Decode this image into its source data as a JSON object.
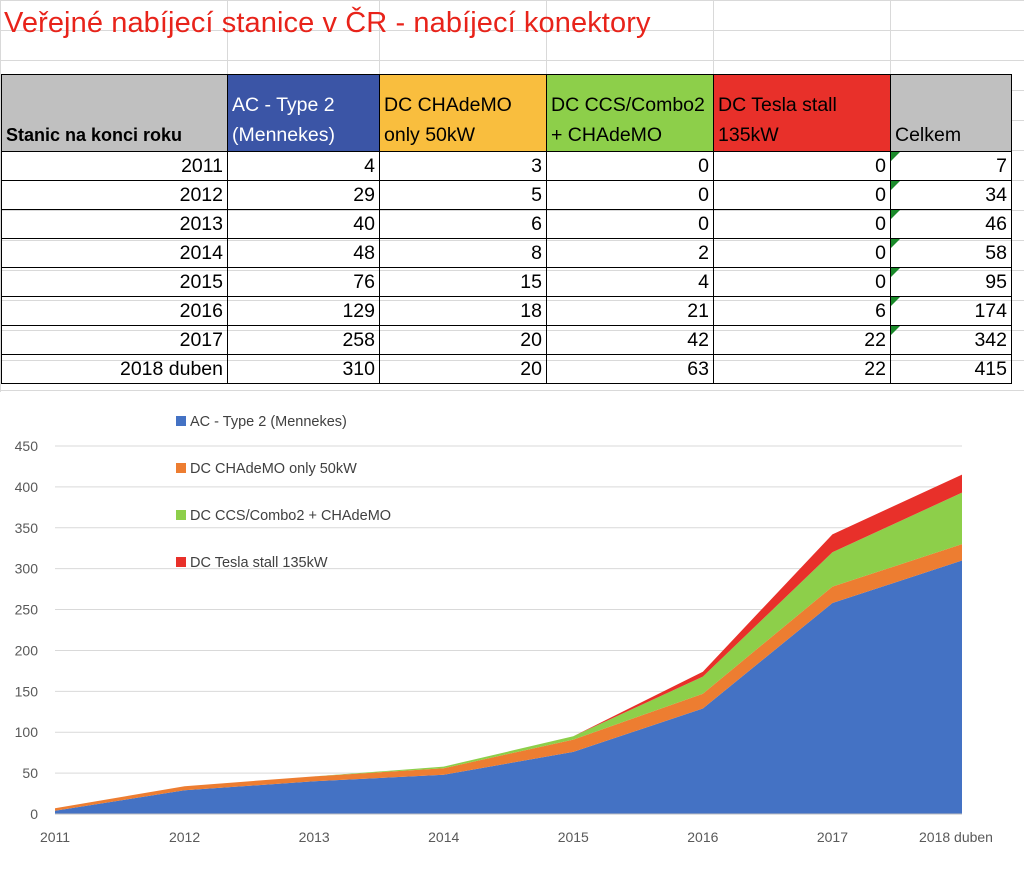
{
  "title": "Veřejné nabíjecí stanice v ČR - nabíjecí konektory",
  "table": {
    "headers": [
      "Stanic na konci roku",
      "AC - Type 2 (Mennekes)",
      "DC CHAdeMO only 50kW",
      "DC CCS/Combo2 + CHAdeMO",
      "DC Tesla stall 135kW",
      "Celkem"
    ],
    "rows": [
      [
        "2011",
        "4",
        "3",
        "0",
        "0",
        "7"
      ],
      [
        "2012",
        "29",
        "5",
        "0",
        "0",
        "34"
      ],
      [
        "2013",
        "40",
        "6",
        "0",
        "0",
        "46"
      ],
      [
        "2014",
        "48",
        "8",
        "2",
        "0",
        "58"
      ],
      [
        "2015",
        "76",
        "15",
        "4",
        "0",
        "95"
      ],
      [
        "2016",
        "129",
        "18",
        "21",
        "6",
        "174"
      ],
      [
        "2017",
        "258",
        "20",
        "42",
        "22",
        "342"
      ],
      [
        "2018 duben",
        "310",
        "20",
        "63",
        "22",
        "415"
      ]
    ]
  },
  "colors": {
    "title": "#e8231a",
    "ac": "#4472c4",
    "chademo": "#ed7d31",
    "ccs": "#8dcf4a",
    "tesla": "#e8302a",
    "header_ac": "#3b55a6",
    "header_chademo": "#f9be3e",
    "header_ccs": "#8dcf4a",
    "header_tesla": "#e8302a",
    "header_gray": "#c0c0c0"
  },
  "chart_data": {
    "type": "area",
    "stacked": true,
    "title": "",
    "xlabel": "",
    "ylabel": "",
    "categories": [
      "2011",
      "2012",
      "2013",
      "2014",
      "2015",
      "2016",
      "2017",
      "2018 duben"
    ],
    "series": [
      {
        "name": "AC - Type 2 (Mennekes)",
        "values": [
          4,
          29,
          40,
          48,
          76,
          129,
          258,
          310
        ],
        "color": "#4472c4"
      },
      {
        "name": "DC CHAdeMO only 50kW",
        "values": [
          3,
          5,
          6,
          8,
          15,
          18,
          20,
          20
        ],
        "color": "#ed7d31"
      },
      {
        "name": "DC CCS/Combo2 + CHAdeMO",
        "values": [
          0,
          0,
          0,
          2,
          4,
          21,
          42,
          63
        ],
        "color": "#8dcf4a"
      },
      {
        "name": "DC Tesla stall 135kW",
        "values": [
          0,
          0,
          0,
          0,
          0,
          6,
          22,
          22
        ],
        "color": "#e8302a"
      }
    ],
    "ylim": [
      0,
      450
    ],
    "yticks": [
      0,
      50,
      100,
      150,
      200,
      250,
      300,
      350,
      400,
      450
    ],
    "grid": "horizontal",
    "legend": "top-left"
  }
}
